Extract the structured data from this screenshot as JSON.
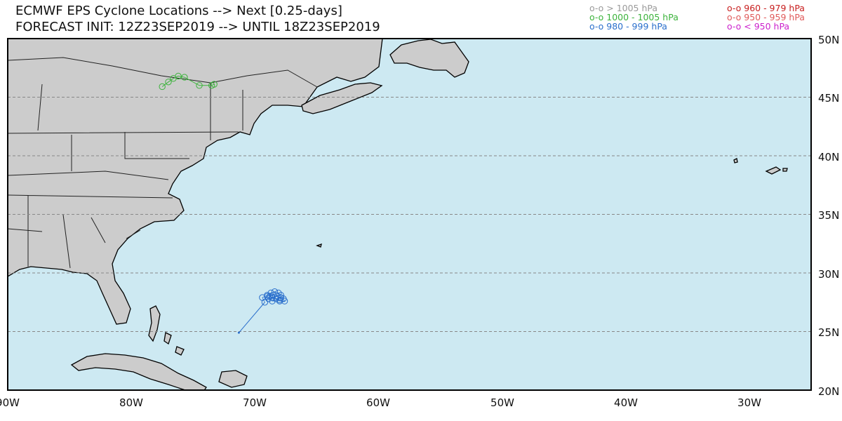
{
  "header": {
    "title_line1": "ECMWF EPS Cyclone Locations --> Next [0.25-days]",
    "title_line2": "FORECAST INIT: 12Z23SEP2019 --> UNTIL 18Z23SEP2019"
  },
  "legend": [
    {
      "label": "o-o > 1005 hPa",
      "color": "#9a9a9a"
    },
    {
      "label": "o-o 1000 - 1005 hPa",
      "color": "#3cb33c"
    },
    {
      "label": "o-o 980 - 999 hPa",
      "color": "#2a6fcc"
    },
    {
      "label": "o-o 960 - 979 hPa",
      "color": "#c81e1e"
    },
    {
      "label": "o-o 950 - 959 hPa",
      "color": "#e05a5a"
    },
    {
      "label": "o-o < 950 hPa",
      "color": "#cc22cc"
    }
  ],
  "map": {
    "extent": {
      "lon_min": -90,
      "lon_max": -25,
      "lat_min": 20,
      "lat_max": 50
    },
    "ocean_color": "#cde9f2",
    "land_color": "#cccccc",
    "lat_labels": [
      "50N",
      "45N",
      "40N",
      "35N",
      "30N",
      "25N",
      "20N"
    ],
    "lon_labels": [
      "90W",
      "80W",
      "70W",
      "60W",
      "50W",
      "40W",
      "30W"
    ]
  },
  "tracks": {
    "green_cluster": {
      "color": "#3cb33c",
      "points": [
        [
          -77.5,
          45.9
        ],
        [
          -77.0,
          46.3
        ],
        [
          -76.6,
          46.6
        ],
        [
          -76.2,
          46.8
        ],
        [
          -75.7,
          46.7
        ],
        [
          -74.5,
          46.0
        ],
        [
          -73.5,
          46.0
        ],
        [
          -73.3,
          46.1
        ]
      ]
    },
    "blue_cluster": {
      "color": "#2a6fcc",
      "start": [
        -71.3,
        24.9
      ],
      "points": [
        [
          -69.2,
          27.5
        ],
        [
          -69.4,
          27.9
        ],
        [
          -69.0,
          28.1
        ],
        [
          -68.7,
          28.3
        ],
        [
          -68.4,
          28.4
        ],
        [
          -68.1,
          28.3
        ],
        [
          -67.9,
          28.1
        ],
        [
          -67.7,
          27.8
        ],
        [
          -67.6,
          27.6
        ],
        [
          -68.0,
          27.6
        ],
        [
          -68.3,
          27.8
        ],
        [
          -68.6,
          27.9
        ],
        [
          -68.9,
          27.8
        ],
        [
          -68.2,
          28.0
        ],
        [
          -67.9,
          27.9
        ],
        [
          -68.5,
          28.1
        ],
        [
          -68.8,
          28.0
        ],
        [
          -68.0,
          27.7
        ],
        [
          -68.6,
          27.6
        ],
        [
          -69.0,
          28.0
        ]
      ]
    }
  }
}
